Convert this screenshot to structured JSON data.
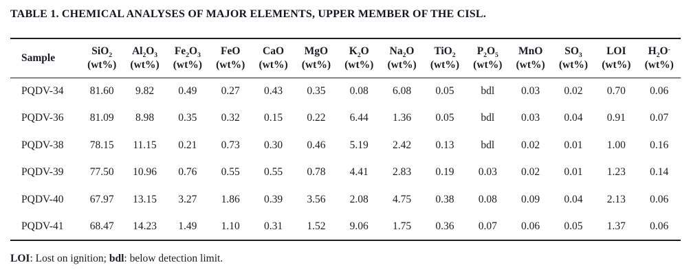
{
  "title": "TABLE 1. CHEMICAL ANALYSES OF MAJOR ELEMENTS, UPPER MEMBER OF THE CISL.",
  "table": {
    "sample_header": "Sample",
    "unit": "(wt%)",
    "columns": [
      {
        "id": "sio2",
        "parts": [
          {
            "text": "SiO"
          },
          {
            "sub": "2"
          }
        ]
      },
      {
        "id": "al2o3",
        "parts": [
          {
            "text": "Al"
          },
          {
            "sub": "2"
          },
          {
            "text": "O"
          },
          {
            "sub": "3"
          }
        ]
      },
      {
        "id": "fe2o3",
        "parts": [
          {
            "text": "Fe"
          },
          {
            "sub": "2"
          },
          {
            "text": "O"
          },
          {
            "sub": "3"
          }
        ]
      },
      {
        "id": "feo",
        "parts": [
          {
            "text": "FeO"
          }
        ]
      },
      {
        "id": "cao",
        "parts": [
          {
            "text": "CaO"
          }
        ]
      },
      {
        "id": "mgo",
        "parts": [
          {
            "text": "MgO"
          }
        ]
      },
      {
        "id": "k2o",
        "parts": [
          {
            "text": "K"
          },
          {
            "sub": "2"
          },
          {
            "text": "O"
          }
        ]
      },
      {
        "id": "na2o",
        "parts": [
          {
            "text": "Na"
          },
          {
            "sub": "2"
          },
          {
            "text": "O"
          }
        ]
      },
      {
        "id": "tio2",
        "parts": [
          {
            "text": "TiO"
          },
          {
            "sub": "2"
          }
        ]
      },
      {
        "id": "p2o5",
        "parts": [
          {
            "text": "P"
          },
          {
            "sub": "2"
          },
          {
            "text": "O"
          },
          {
            "sub": "5"
          }
        ]
      },
      {
        "id": "mno",
        "parts": [
          {
            "text": "MnO"
          }
        ]
      },
      {
        "id": "so3",
        "parts": [
          {
            "text": "SO"
          },
          {
            "sub": "3"
          }
        ]
      },
      {
        "id": "loi",
        "parts": [
          {
            "text": "LOI"
          }
        ]
      },
      {
        "id": "h2o",
        "parts": [
          {
            "text": "H"
          },
          {
            "sub": "2"
          },
          {
            "text": "O"
          },
          {
            "sup": "-"
          }
        ]
      }
    ],
    "rows": [
      {
        "sample": "PQDV-34",
        "values": [
          "81.60",
          "9.82",
          "0.49",
          "0.27",
          "0.43",
          "0.35",
          "0.08",
          "6.08",
          "0.05",
          "bdl",
          "0.03",
          "0.02",
          "0.70",
          "0.06"
        ]
      },
      {
        "sample": "PQDV-36",
        "values": [
          "81.09",
          "8.98",
          "0.35",
          "0.32",
          "0.15",
          "0.22",
          "6.44",
          "1.36",
          "0.05",
          "bdl",
          "0.03",
          "0.04",
          "0.91",
          "0.07"
        ]
      },
      {
        "sample": "PQDV-38",
        "values": [
          "78.15",
          "11.15",
          "0.21",
          "0.73",
          "0.30",
          "0.46",
          "5.19",
          "2.42",
          "0.13",
          "bdl",
          "0.02",
          "0.01",
          "1.00",
          "0.16"
        ]
      },
      {
        "sample": "PQDV-39",
        "values": [
          "77.50",
          "10.96",
          "0.76",
          "0.55",
          "0.55",
          "0.78",
          "4.41",
          "2.83",
          "0.19",
          "0.03",
          "0.02",
          "0.01",
          "1.23",
          "0.14"
        ]
      },
      {
        "sample": "PQDV-40",
        "values": [
          "67.97",
          "13.15",
          "3.27",
          "1.86",
          "0.39",
          "3.56",
          "2.08",
          "4.75",
          "0.38",
          "0.08",
          "0.09",
          "0.04",
          "2.13",
          "0.06"
        ]
      },
      {
        "sample": "PQDV-41",
        "values": [
          "68.47",
          "14.23",
          "1.49",
          "1.10",
          "0.31",
          "1.52",
          "9.06",
          "1.75",
          "0.36",
          "0.07",
          "0.06",
          "0.05",
          "1.37",
          "0.06"
        ]
      }
    ]
  },
  "footnote": {
    "loi_term": "LOI",
    "loi_def": ": Lost on ignition; ",
    "bdl_term": "bdl",
    "bdl_def": ": below detection limit."
  }
}
